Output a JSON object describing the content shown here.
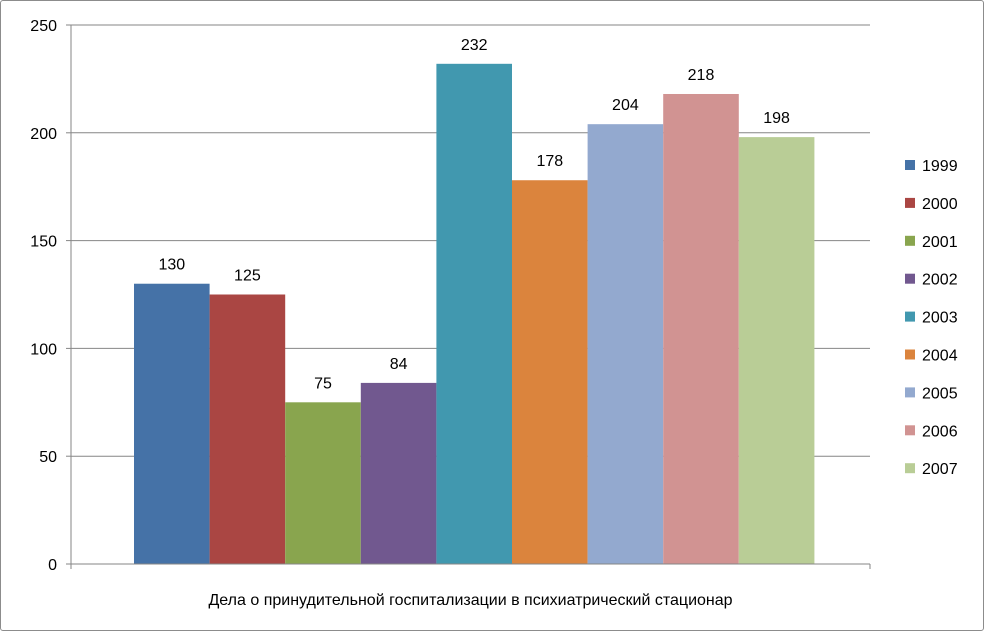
{
  "chart_data": {
    "type": "bar",
    "categories": [
      "Дела о принудительной госпитализации в психиатрический стационар"
    ],
    "series": [
      {
        "name": "1999",
        "values": [
          130
        ],
        "color": "#4572A7"
      },
      {
        "name": "2000",
        "values": [
          125
        ],
        "color": "#AA4643"
      },
      {
        "name": "2001",
        "values": [
          75
        ],
        "color": "#89A54E"
      },
      {
        "name": "2002",
        "values": [
          84
        ],
        "color": "#71588F"
      },
      {
        "name": "2003",
        "values": [
          232
        ],
        "color": "#4198AF"
      },
      {
        "name": "2004",
        "values": [
          178
        ],
        "color": "#DB843D"
      },
      {
        "name": "2005",
        "values": [
          204
        ],
        "color": "#93A9CF"
      },
      {
        "name": "2006",
        "values": [
          218
        ],
        "color": "#D19392"
      },
      {
        "name": "2007",
        "values": [
          198
        ],
        "color": "#B9CD96"
      }
    ],
    "ylim": [
      0,
      250
    ],
    "yticks": [
      "0",
      "50",
      "100",
      "150",
      "200",
      "250"
    ],
    "grid": true,
    "legend_position": "right",
    "data_labels": true
  }
}
